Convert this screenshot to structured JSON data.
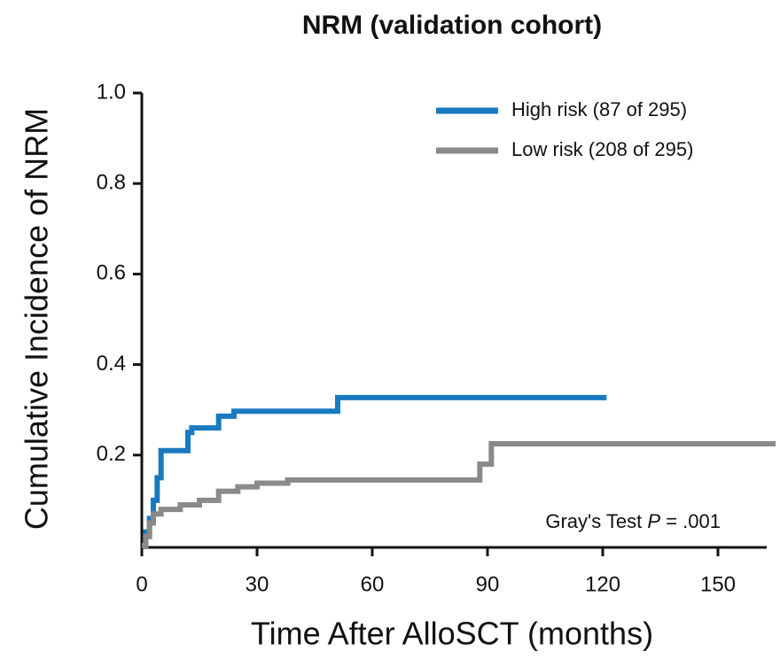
{
  "chart_data": {
    "type": "line",
    "step": true,
    "title": "NRM (validation cohort)",
    "x_label": "Time After AlloSCT (months)",
    "y_label": "Cumulative Incidence of NRM",
    "xlim": [
      0,
      165
    ],
    "ylim": [
      0,
      1
    ],
    "xticks": [
      0,
      30,
      60,
      90,
      120,
      150
    ],
    "yticks": [
      0.2,
      0.4,
      0.6,
      0.8,
      {
        "value": 1,
        "label": "1.0"
      }
    ],
    "legend_position": "upper right",
    "annotation": {
      "prefix": "Gray's Test",
      "italic": "P",
      "suffix": "= .001"
    },
    "series": [
      {
        "name": "High risk (87 of 295)",
        "color": "#1a7abf",
        "x": [
          0,
          1,
          2,
          3,
          4,
          5,
          12,
          13,
          20,
          24,
          51,
          121
        ],
        "values": [
          0,
          0.03,
          0.06,
          0.1,
          0.15,
          0.21,
          0.25,
          0.26,
          0.286,
          0.297,
          0.327,
          0.327
        ]
      },
      {
        "name": "Low risk (208 of 295)",
        "color": "#8a8a8a",
        "x": [
          0,
          1,
          2,
          3,
          5,
          10,
          15,
          20,
          25,
          30,
          38,
          88,
          91,
          165
        ],
        "values": [
          0,
          0.02,
          0.05,
          0.07,
          0.08,
          0.09,
          0.1,
          0.12,
          0.13,
          0.138,
          0.145,
          0.18,
          0.225,
          0.225
        ]
      }
    ]
  }
}
